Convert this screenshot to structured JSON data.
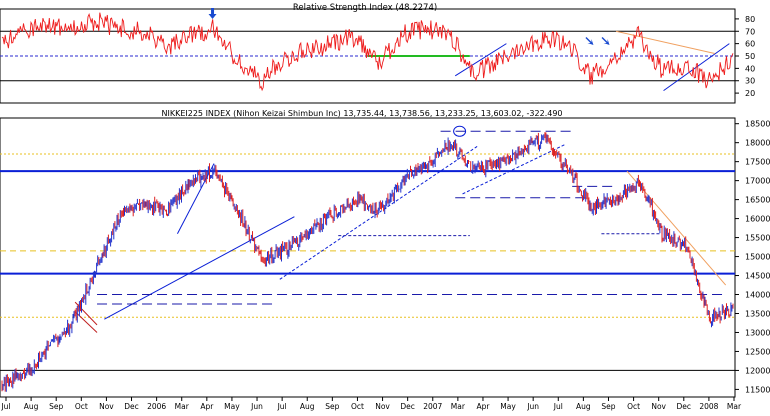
{
  "colors": {
    "background": "#ffffff",
    "frame": "#000000",
    "rsi_line": "#ee1c1c",
    "candle_up": "#2233cc",
    "candle_down": "#dd2222",
    "support_line": "#0a1fd6",
    "dashed_line": "#1a1aaa",
    "fib_line": "#e8c020",
    "trend_orange": "#f0a060",
    "rsi_green": "#22bb22",
    "arrow": "#1a4bd0"
  },
  "chart_data": [
    {
      "type": "line",
      "title": "Relative Strength Index (48.2274)",
      "ylim": [
        12,
        88
      ],
      "yticks": [
        "80",
        "70",
        "60",
        "50",
        "40",
        "30",
        "20"
      ],
      "reference_lines": [
        70,
        50,
        30
      ],
      "series": [
        {
          "x": [
            "2005-07",
            "2005-08",
            "2005-09",
            "2005-10",
            "2005-11",
            "2005-12",
            "2006-01",
            "2006-02",
            "2006-03",
            "2006-04",
            "2006-05",
            "2006-06",
            "2006-07",
            "2006-08",
            "2006-09",
            "2006-10",
            "2006-11",
            "2006-12",
            "2007-01",
            "2007-02",
            "2007-03",
            "2007-04",
            "2007-05",
            "2007-06",
            "2007-07",
            "2007-08",
            "2007-09",
            "2007-10",
            "2007-11",
            "2007-12",
            "2008-01",
            "2008-02"
          ],
          "values": [
            62,
            70,
            75,
            74,
            78,
            72,
            70,
            58,
            66,
            72,
            45,
            30,
            48,
            55,
            60,
            66,
            44,
            68,
            72,
            68,
            35,
            45,
            58,
            64,
            60,
            33,
            50,
            66,
            38,
            42,
            30,
            48
          ]
        }
      ]
    },
    {
      "type": "candlestick",
      "title": "NIKKEI225 INDEX (Nihon Keizai Shimbun Inc) 13,735.44, 13,738.56, 13,233.25, 13,603.02, -322.490",
      "ylim": [
        11300,
        18650
      ],
      "yticks": [
        "18500",
        "18000",
        "17500",
        "17000",
        "16500",
        "16000",
        "15500",
        "15000",
        "14500",
        "14000",
        "13500",
        "13000",
        "12500",
        "12000",
        "11500"
      ],
      "xticks": [
        "Jul",
        "Aug",
        "Sep",
        "Oct",
        "Nov",
        "Dec",
        "2006",
        "Mar",
        "Apr",
        "May",
        "Jun",
        "Jul",
        "Aug",
        "Sep",
        "Oct",
        "Nov",
        "Dec",
        "2007",
        "Mar",
        "Apr",
        "May",
        "Jun",
        "Jul",
        "Aug",
        "Sep",
        "Oct",
        "Nov",
        "Dec",
        "2008",
        "Mar"
      ],
      "x": [
        "2005-07",
        "2005-08",
        "2005-09",
        "2005-10",
        "2005-11",
        "2005-12",
        "2006-01",
        "2006-02",
        "2006-03",
        "2006-04",
        "2006-05",
        "2006-06",
        "2006-07",
        "2006-08",
        "2006-09",
        "2006-10",
        "2006-11",
        "2006-12",
        "2007-01",
        "2007-02",
        "2007-03",
        "2007-04",
        "2007-05",
        "2007-06",
        "2007-07",
        "2007-08",
        "2007-09",
        "2007-10",
        "2007-11",
        "2007-12",
        "2008-01",
        "2008-02"
      ],
      "close": [
        11650,
        11900,
        12600,
        13300,
        14700,
        16100,
        16450,
        16200,
        17000,
        17200,
        16200,
        14900,
        15200,
        15600,
        16100,
        16500,
        16200,
        17000,
        17400,
        18000,
        17300,
        17400,
        17800,
        18100,
        17300,
        16300,
        16500,
        17000,
        15600,
        15300,
        13400,
        13600
      ],
      "horizontal_levels": [
        17250,
        14550,
        12000
      ],
      "fib_levels": [
        17700,
        15150,
        13400
      ]
    }
  ]
}
